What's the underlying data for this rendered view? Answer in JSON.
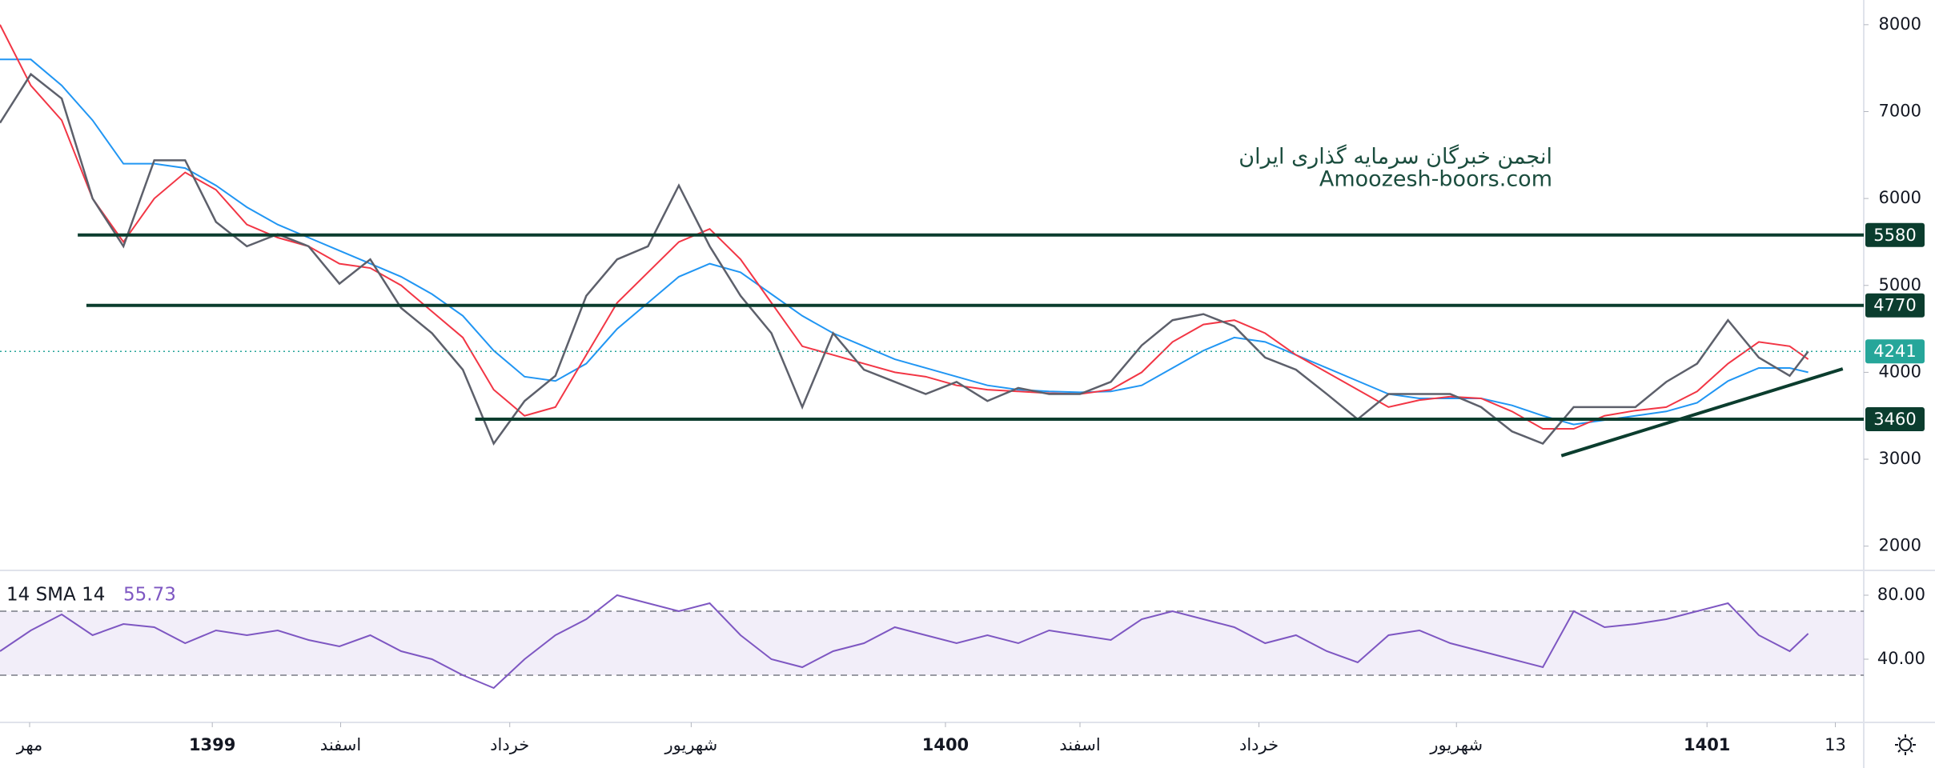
{
  "chart_data": {
    "type": "line",
    "x": [
      0,
      25,
      50,
      75,
      100,
      125,
      150,
      175,
      200,
      225,
      250,
      275,
      300,
      325,
      350,
      375,
      400,
      425,
      450,
      475,
      500,
      525,
      550,
      575,
      600,
      625,
      650,
      675,
      700,
      725,
      750,
      775,
      800,
      825,
      850,
      875,
      900,
      925,
      950,
      975,
      1000,
      1025,
      1050,
      1075,
      1100,
      1125,
      1150,
      1175,
      1200,
      1225,
      1250,
      1275,
      1300,
      1325,
      1350,
      1375,
      1400,
      1425,
      1450,
      1465
    ],
    "close": {
      "color": "#5d606b",
      "values": [
        6870,
        7430,
        7150,
        6000,
        5450,
        6440,
        6440,
        5730,
        5450,
        5590,
        5450,
        5020,
        5300,
        4740,
        4450,
        4030,
        3180,
        3670,
        3960,
        4880,
        5300,
        5450,
        6150,
        5450,
        4880,
        4450,
        3600,
        4450,
        4030,
        3890,
        3750,
        3890,
        3670,
        3820,
        3750,
        3750,
        3890,
        4310,
        4600,
        4670,
        4530,
        4170,
        4030,
        3750,
        3460,
        3750,
        3750,
        3750,
        3600,
        3320,
        3180,
        3600,
        3600,
        3600,
        3890,
        4100,
        4600,
        4170,
        3960,
        4241
      ]
    },
    "ma_fast": {
      "color": "#f23645",
      "values": [
        8000,
        7300,
        6900,
        6000,
        5500,
        6000,
        6300,
        6100,
        5700,
        5550,
        5450,
        5250,
        5200,
        5000,
        4700,
        4400,
        3800,
        3500,
        3600,
        4200,
        4800,
        5150,
        5500,
        5650,
        5300,
        4800,
        4300,
        4200,
        4100,
        4000,
        3950,
        3850,
        3800,
        3780,
        3760,
        3750,
        3800,
        4000,
        4350,
        4550,
        4600,
        4450,
        4200,
        4000,
        3800,
        3600,
        3680,
        3720,
        3700,
        3550,
        3350,
        3350,
        3500,
        3560,
        3600,
        3780,
        4100,
        4350,
        4300,
        4150
      ]
    },
    "ma_slow": {
      "color": "#2196f3",
      "values": [
        7600,
        7600,
        7300,
        6900,
        6400,
        6400,
        6350,
        6150,
        5900,
        5700,
        5550,
        5400,
        5250,
        5100,
        4900,
        4650,
        4250,
        3950,
        3900,
        4100,
        4500,
        4800,
        5100,
        5250,
        5150,
        4900,
        4650,
        4450,
        4300,
        4150,
        4050,
        3950,
        3850,
        3800,
        3780,
        3770,
        3780,
        3850,
        4050,
        4250,
        4400,
        4350,
        4200,
        4050,
        3900,
        3750,
        3700,
        3700,
        3700,
        3620,
        3500,
        3400,
        3450,
        3500,
        3550,
        3650,
        3900,
        4050,
        4050,
        4000
      ]
    },
    "xlim": [
      0,
      1510
    ],
    "xticks": [
      {
        "value": 24,
        "label": "مهر"
      },
      {
        "value": 172,
        "label": "1399"
      },
      {
        "value": 276,
        "label": "اسفند"
      },
      {
        "value": 413,
        "label": "خرداد"
      },
      {
        "value": 560,
        "label": "شهریور"
      },
      {
        "value": 766,
        "label": "1400"
      },
      {
        "value": 875,
        "label": "اسفند"
      },
      {
        "value": 1020,
        "label": "خرداد"
      },
      {
        "value": 1180,
        "label": "شهریور"
      },
      {
        "value": 1383,
        "label": "1401"
      },
      {
        "value": 1487,
        "label": "13"
      }
    ],
    "ylim": [
      1730,
      8284
    ],
    "yticks": [
      2000,
      3000,
      4000,
      5000,
      6000,
      7000,
      8000
    ],
    "levels": [
      {
        "value": 5580,
        "x_start": 63
      },
      {
        "value": 4770,
        "x_start": 70
      },
      {
        "value": 3460,
        "x_start": 385
      }
    ],
    "level_color": "#0b3d2e",
    "last_price": 4241,
    "last_color": "#26a69a",
    "trendline": {
      "x": [
        1265,
        1493
      ],
      "y": [
        3040,
        4040
      ]
    },
    "watermark": [
      "انجمن خبرگان سرمایه گذاری ایران",
      "Amoozesh-boors.com"
    ],
    "rsi": {
      "title": "14 SMA 14",
      "value": 55.73,
      "color": "#7e57c2",
      "values": [
        45,
        58,
        68,
        55,
        62,
        60,
        50,
        58,
        55,
        58,
        52,
        48,
        55,
        45,
        40,
        30,
        22,
        40,
        55,
        65,
        80,
        75,
        70,
        75,
        55,
        40,
        35,
        45,
        50,
        60,
        55,
        50,
        55,
        50,
        58,
        55,
        52,
        65,
        70,
        65,
        60,
        50,
        55,
        45,
        38,
        55,
        58,
        50,
        45,
        40,
        35,
        70,
        60,
        62,
        65,
        70,
        75,
        55,
        45,
        56
      ],
      "ylim": [
        1,
        95
      ],
      "yticks": [
        {
          "value": 80,
          "label": "80.00"
        },
        {
          "value": 40,
          "label": "40.00"
        }
      ],
      "bands": [
        30,
        70
      ]
    }
  }
}
